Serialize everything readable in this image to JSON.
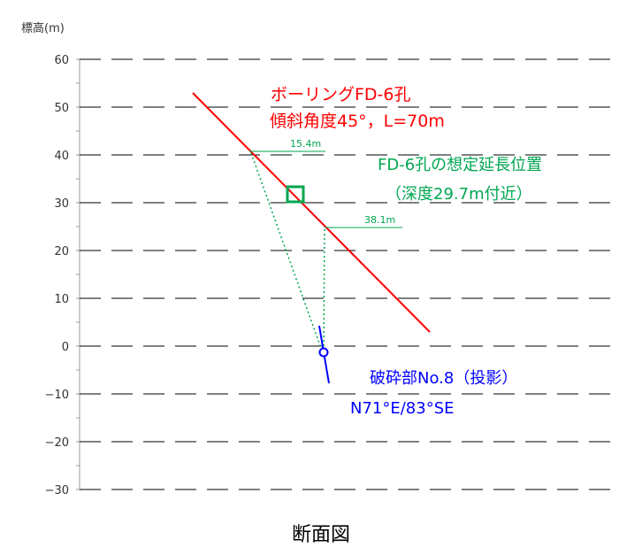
{
  "y_axis": {
    "label": "標高(m)",
    "ticks": [
      60,
      50,
      40,
      30,
      20,
      10,
      0,
      -10,
      -20,
      -30
    ],
    "tick_labels": [
      "60",
      "50",
      "40",
      "30",
      "20",
      "10",
      "0",
      "−10",
      "−20",
      "−30"
    ]
  },
  "borehole": {
    "title": "ボーリングFD-6孔",
    "detail": "傾斜角度45°，L=70m",
    "color": "#ff0000"
  },
  "extension": {
    "line1": "FD-6孔の想定延長位置",
    "line2": "（深度29.7m付近）",
    "color": "#00a651"
  },
  "distance_labels": [
    "15.4m",
    "38.1m"
  ],
  "fracture": {
    "line1": "破砕部No.8（投影）",
    "line2": "N71°E/83°SE",
    "color": "#0000ff"
  },
  "caption": "断面図",
  "colors": {
    "grid": "#000000",
    "axis": "#9a9a9a"
  }
}
